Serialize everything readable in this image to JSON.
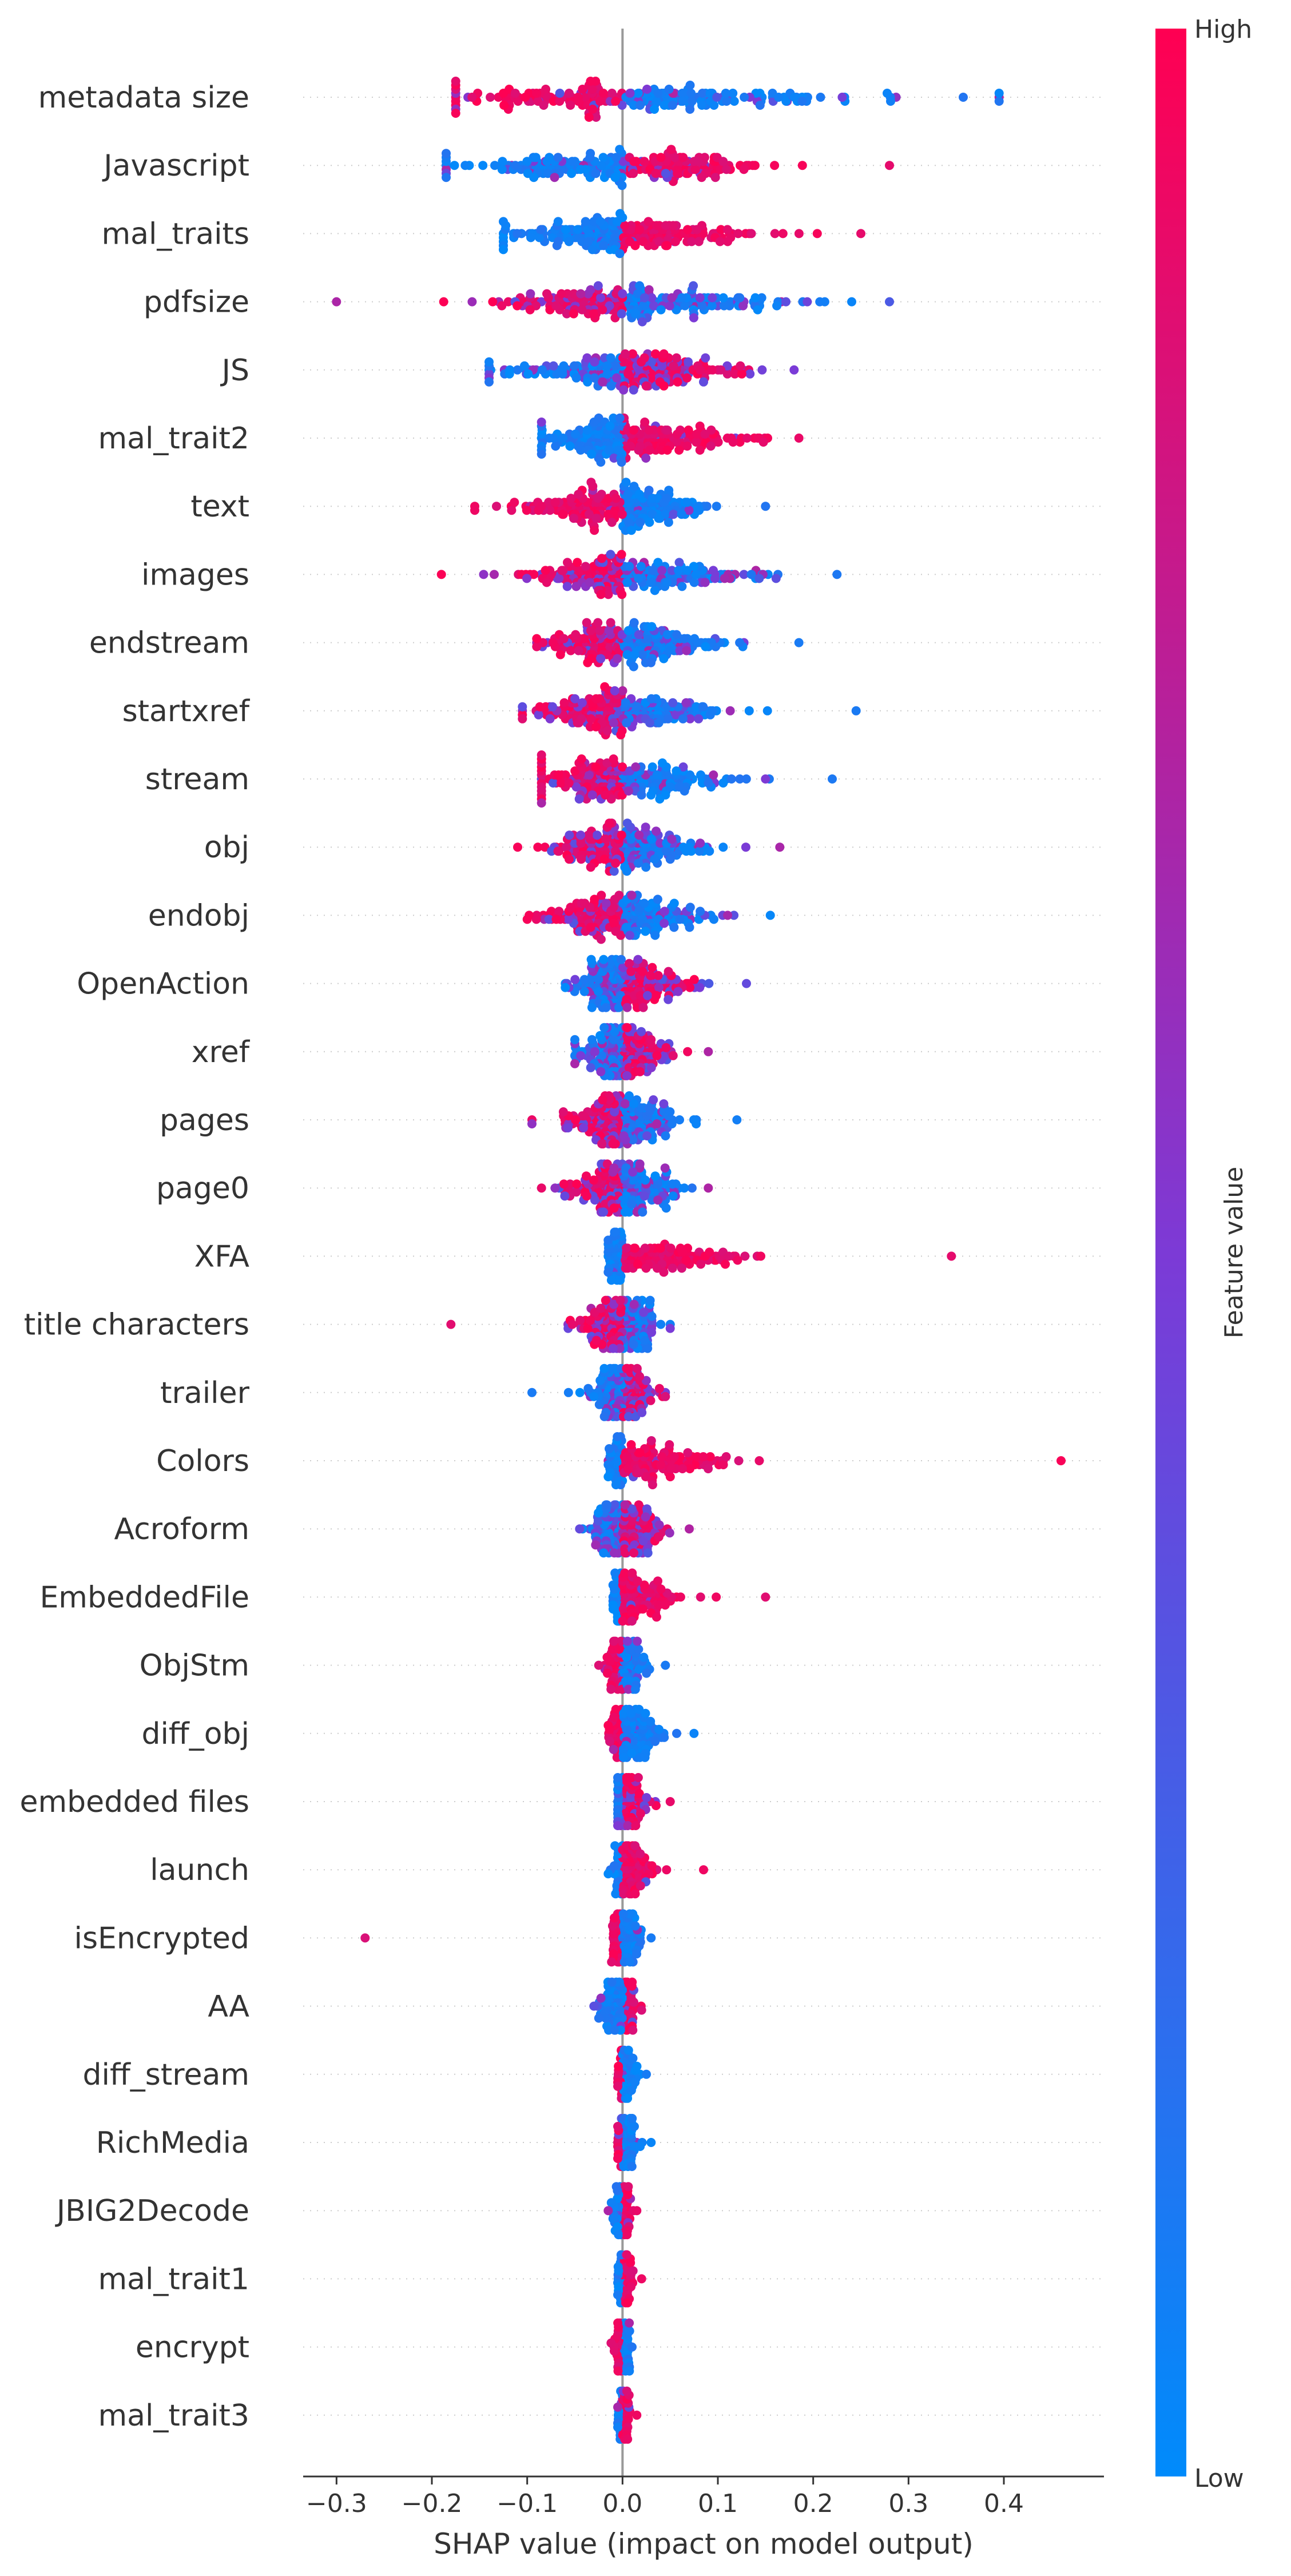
{
  "chart_data": {
    "type": "scatter",
    "subtype": "shap-beeswarm",
    "xlabel": "SHAP value (impact on model output)",
    "xlim": [
      -0.335,
      0.505
    ],
    "xticks": [
      -0.3,
      -0.2,
      -0.1,
      0.0,
      0.1,
      0.2,
      0.3,
      0.4
    ],
    "xtick_labels": [
      "−0.3",
      "−0.2",
      "−0.1",
      "0.0",
      "0.1",
      "0.2",
      "0.3",
      "0.4"
    ],
    "colorbar": {
      "title": "Feature value",
      "high_label": "High",
      "low_label": "Low",
      "high_color": "#ff0052",
      "mid_color": "#7c3ad6",
      "low_color": "#008bfb"
    },
    "features": [
      {
        "name": "metadata size",
        "min": -0.175,
        "max": 0.395,
        "lowIsPositive": true,
        "mix": 0.1,
        "spreadL": 0.09,
        "spreadR": 0.12
      },
      {
        "name": "Javascript",
        "min": -0.185,
        "max": 0.28,
        "lowIsPositive": false,
        "mix": 0.18,
        "spreadL": 0.09,
        "spreadR": 0.07
      },
      {
        "name": "mal_traits",
        "min": -0.125,
        "max": 0.25,
        "lowIsPositive": false,
        "mix": 0.05,
        "spreadL": 0.06,
        "spreadR": 0.07
      },
      {
        "name": "pdfsize",
        "min": -0.3,
        "max": 0.28,
        "lowIsPositive": true,
        "mix": 0.3,
        "spreadL": 0.06,
        "spreadR": 0.09
      },
      {
        "name": "JS",
        "min": -0.14,
        "max": 0.18,
        "lowIsPositive": false,
        "mix": 0.4,
        "spreadL": 0.06,
        "spreadR": 0.06
      },
      {
        "name": "mal_trait2",
        "min": -0.085,
        "max": 0.185,
        "lowIsPositive": false,
        "mix": 0.05,
        "spreadL": 0.04,
        "spreadR": 0.06
      },
      {
        "name": "text",
        "min": -0.155,
        "max": 0.15,
        "lowIsPositive": true,
        "mix": 0.05,
        "spreadL": 0.06,
        "spreadR": 0.04
      },
      {
        "name": "images",
        "min": -0.19,
        "max": 0.225,
        "lowIsPositive": true,
        "mix": 0.3,
        "spreadL": 0.05,
        "spreadR": 0.07
      },
      {
        "name": "endstream",
        "min": -0.09,
        "max": 0.185,
        "lowIsPositive": true,
        "mix": 0.25,
        "spreadL": 0.04,
        "spreadR": 0.05
      },
      {
        "name": "startxref",
        "min": -0.105,
        "max": 0.245,
        "lowIsPositive": true,
        "mix": 0.3,
        "spreadL": 0.04,
        "spreadR": 0.05
      },
      {
        "name": "stream",
        "min": -0.085,
        "max": 0.22,
        "lowIsPositive": true,
        "mix": 0.25,
        "spreadL": 0.04,
        "spreadR": 0.05
      },
      {
        "name": "obj",
        "min": -0.11,
        "max": 0.165,
        "lowIsPositive": true,
        "mix": 0.3,
        "spreadL": 0.04,
        "spreadR": 0.04
      },
      {
        "name": "endobj",
        "min": -0.1,
        "max": 0.155,
        "lowIsPositive": true,
        "mix": 0.25,
        "spreadL": 0.04,
        "spreadR": 0.04
      },
      {
        "name": "OpenAction",
        "min": -0.06,
        "max": 0.13,
        "lowIsPositive": false,
        "mix": 0.35,
        "spreadL": 0.025,
        "spreadR": 0.04
      },
      {
        "name": "xref",
        "min": -0.05,
        "max": 0.09,
        "lowIsPositive": false,
        "mix": 0.45,
        "spreadL": 0.02,
        "spreadR": 0.025
      },
      {
        "name": "pages",
        "min": -0.095,
        "max": 0.12,
        "lowIsPositive": true,
        "mix": 0.3,
        "spreadL": 0.03,
        "spreadR": 0.03
      },
      {
        "name": "page0",
        "min": -0.085,
        "max": 0.09,
        "lowIsPositive": true,
        "mix": 0.4,
        "spreadL": 0.025,
        "spreadR": 0.03
      },
      {
        "name": "XFA",
        "min": -0.015,
        "max": 0.345,
        "lowIsPositive": false,
        "mix": 0.02,
        "spreadL": 0.006,
        "spreadR": 0.06
      },
      {
        "name": "title characters",
        "min": -0.18,
        "max": 0.05,
        "lowIsPositive": true,
        "mix": 0.35,
        "spreadL": 0.025,
        "spreadR": 0.015
      },
      {
        "name": "trailer",
        "min": -0.095,
        "max": 0.045,
        "lowIsPositive": false,
        "mix": 0.4,
        "spreadL": 0.015,
        "spreadR": 0.015
      },
      {
        "name": "Colors",
        "min": -0.015,
        "max": 0.46,
        "lowIsPositive": false,
        "mix": 0.02,
        "spreadL": 0.005,
        "spreadR": 0.05
      },
      {
        "name": "Acroform",
        "min": -0.045,
        "max": 0.07,
        "lowIsPositive": false,
        "mix": 0.5,
        "spreadL": 0.015,
        "spreadR": 0.02
      },
      {
        "name": "EmbeddedFile",
        "min": -0.01,
        "max": 0.15,
        "lowIsPositive": false,
        "mix": 0.02,
        "spreadL": 0.004,
        "spreadR": 0.03
      },
      {
        "name": "ObjStm",
        "min": -0.025,
        "max": 0.045,
        "lowIsPositive": true,
        "mix": 0.1,
        "spreadL": 0.008,
        "spreadR": 0.01
      },
      {
        "name": "diff_obj",
        "min": -0.015,
        "max": 0.075,
        "lowIsPositive": true,
        "mix": 0.05,
        "spreadL": 0.005,
        "spreadR": 0.02
      },
      {
        "name": "embedded files",
        "min": -0.005,
        "max": 0.05,
        "lowIsPositive": false,
        "mix": 0.3,
        "spreadL": 0.003,
        "spreadR": 0.012
      },
      {
        "name": "launch",
        "min": -0.015,
        "max": 0.085,
        "lowIsPositive": false,
        "mix": 0.02,
        "spreadL": 0.004,
        "spreadR": 0.012
      },
      {
        "name": "isEncrypted",
        "min": -0.27,
        "max": 0.03,
        "lowIsPositive": true,
        "mix": 0.02,
        "spreadL": 0.005,
        "spreadR": 0.008
      },
      {
        "name": "AA",
        "min": -0.03,
        "max": 0.02,
        "lowIsPositive": false,
        "mix": 0.05,
        "spreadL": 0.01,
        "spreadR": 0.006
      },
      {
        "name": "diff_stream",
        "min": -0.005,
        "max": 0.025,
        "lowIsPositive": true,
        "mix": 0.05,
        "spreadL": 0.002,
        "spreadR": 0.006
      },
      {
        "name": "RichMedia",
        "min": -0.005,
        "max": 0.03,
        "lowIsPositive": true,
        "mix": 0.05,
        "spreadL": 0.002,
        "spreadR": 0.006
      },
      {
        "name": "JBIG2Decode",
        "min": -0.015,
        "max": 0.015,
        "lowIsPositive": false,
        "mix": 0.05,
        "spreadL": 0.004,
        "spreadR": 0.004
      },
      {
        "name": "mal_trait1",
        "min": -0.005,
        "max": 0.02,
        "lowIsPositive": false,
        "mix": 0.05,
        "spreadL": 0.002,
        "spreadR": 0.004
      },
      {
        "name": "encrypt",
        "min": -0.012,
        "max": 0.01,
        "lowIsPositive": true,
        "mix": 0.05,
        "spreadL": 0.003,
        "spreadR": 0.003
      },
      {
        "name": "mal_trait3",
        "min": -0.005,
        "max": 0.015,
        "lowIsPositive": false,
        "mix": 0.05,
        "spreadL": 0.002,
        "spreadR": 0.003
      }
    ]
  }
}
